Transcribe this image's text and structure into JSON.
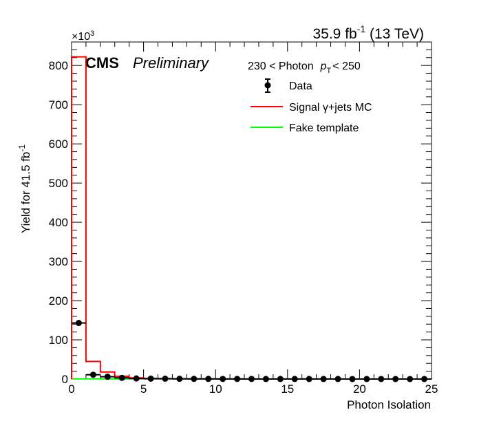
{
  "chart_data": {
    "type": "histogram",
    "lumi_label": "35.9 fb",
    "lumi_exp": "-1",
    "energy_label": " (13 TeV)",
    "experiment": "CMS",
    "status": "Preliminary",
    "bin_label_prefix": "230 < Photon",
    "bin_label_var": "p",
    "bin_label_sub": "T",
    "bin_label_suffix": "< 250",
    "xlabel": "Photon Isolation",
    "ylabel": "Yield for 41.5 fb",
    "ylabel_exp": "-1",
    "y_multiplier_base": "×10",
    "y_multiplier_exp": "3",
    "xlim": [
      0,
      25
    ],
    "ylim": [
      0,
      860
    ],
    "x_ticks": [
      0,
      5,
      10,
      15,
      20,
      25
    ],
    "y_ticks": [
      0,
      100,
      200,
      300,
      400,
      500,
      600,
      700,
      800
    ],
    "bin_edges": [
      0,
      1,
      2,
      3,
      4,
      5,
      6,
      7,
      8,
      9,
      10,
      11,
      12,
      13,
      14,
      15,
      16,
      17,
      18,
      19,
      20,
      21,
      22,
      23,
      24,
      25
    ],
    "legend": [
      {
        "label": "Data",
        "style": "marker"
      },
      {
        "label": "Signal  γ+jets MC",
        "style": "line",
        "color": "#ff0000"
      },
      {
        "label": "Fake template",
        "style": "line",
        "color": "#00ff00"
      }
    ],
    "series": [
      {
        "name": "Data",
        "style": "marker",
        "color": "#000000",
        "values": [
          143,
          11,
          6,
          3,
          1.5,
          1,
          0.8,
          0.6,
          0.5,
          0.4,
          0.3,
          0.3,
          0.3,
          0.2,
          0.2,
          0.2,
          0.2,
          0.2,
          0.2,
          0.1,
          0.1,
          0.1,
          0.1,
          0.1,
          0.1
        ]
      },
      {
        "name": "Signal  γ+jets MC",
        "style": "step",
        "color": "#ff0000",
        "values": [
          822,
          45,
          18,
          7,
          3,
          1.5,
          1,
          0.5,
          0.4,
          0.3,
          0.2,
          0.2,
          0.1,
          0.1,
          0.1,
          0.1,
          0.1,
          0.1,
          0.1,
          0.1,
          0.1,
          0.1,
          0.1,
          0.1,
          0.1
        ]
      },
      {
        "name": "Fake template",
        "style": "step",
        "color": "#00ff00",
        "values": [
          0.5,
          0.4,
          0.3,
          0.3,
          0.2,
          0.2,
          0.2,
          0.1,
          0.1,
          0.1,
          0.1,
          0.1,
          0.1,
          0.1,
          0.1,
          0.1,
          0.1,
          0.1,
          0.1,
          0.1,
          0.1,
          0.1,
          0.1,
          0.1,
          0.1
        ]
      }
    ]
  }
}
